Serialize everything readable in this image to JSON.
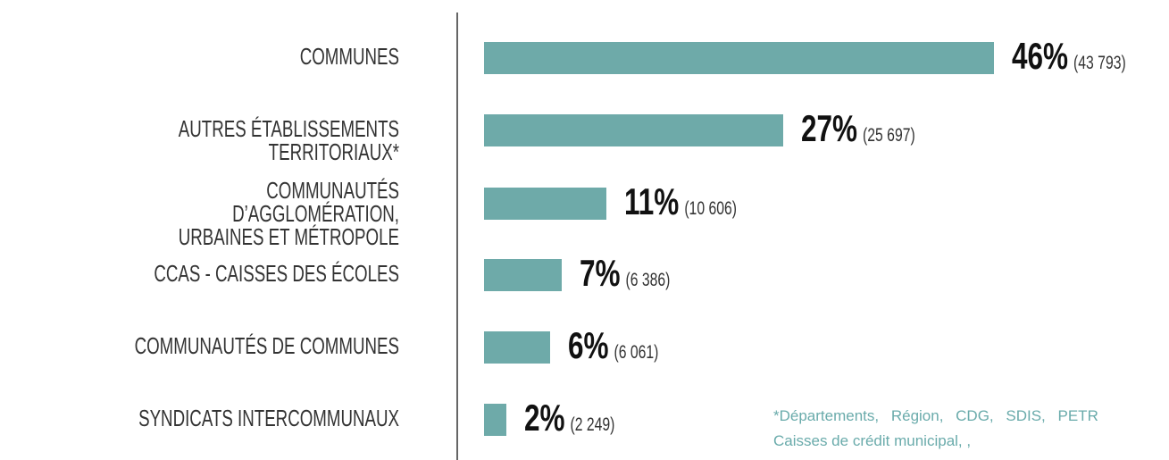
{
  "chart_data": {
    "type": "bar",
    "orientation": "horizontal",
    "categories": [
      "COMMUNES",
      "AUTRES ÉTABLISSEMENTS TERRITORIAUX*",
      "COMMUNAUTÉS D’AGGLOMÉRATION,\nURBAINES ET  MÉTROPOLE",
      "CCAS - CAISSES DES ÉCOLES",
      "COMMUNAUTÉS DE COMMUNES",
      "SYNDICATS INTERCOMMUNAUX"
    ],
    "values": [
      46,
      27,
      11,
      7,
      6,
      2
    ],
    "value_labels": [
      "46%",
      "27%",
      "11%",
      "7%",
      "6%",
      "2%"
    ],
    "counts": [
      43793,
      25697,
      10606,
      6386,
      6061,
      2249
    ],
    "count_labels": [
      "(43 793)",
      "(25 697)",
      "(10 606)",
      "(6 386)",
      "(6 061)",
      "(2 249)"
    ],
    "color": "#6eaaa9",
    "footnote": [
      "*Départements, Région, CDG, SDIS, PETR",
      "Caisses de crédit municipal, ,"
    ]
  }
}
